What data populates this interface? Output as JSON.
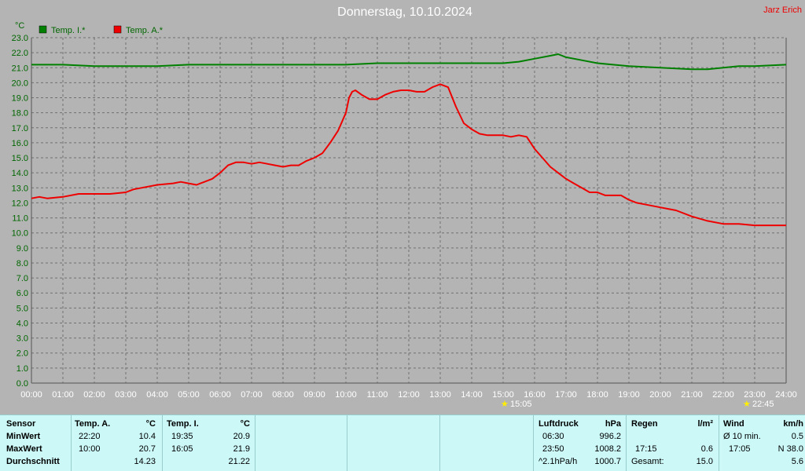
{
  "title": "Donnerstag, 10.10.2024",
  "author": "Jarz Erich",
  "unit": "°C",
  "markers": [
    "15:05",
    "22:45"
  ],
  "colors": {
    "inner": "#008000",
    "outer": "#ee0000",
    "axis": "#006600",
    "background": "#b4b4b4"
  },
  "chart_data": {
    "type": "line",
    "title": "Donnerstag, 10.10.2024",
    "ylabel": "°C",
    "ylim": [
      0,
      23
    ],
    "xlim": [
      0,
      24
    ],
    "grid": true,
    "legend": "top-left",
    "yticks": [
      "0.0",
      "1.0",
      "2.0",
      "3.0",
      "4.0",
      "5.0",
      "6.0",
      "7.0",
      "8.0",
      "9.0",
      "10.0",
      "11.0",
      "12.0",
      "13.0",
      "14.0",
      "15.0",
      "16.0",
      "17.0",
      "18.0",
      "19.0",
      "20.0",
      "21.0",
      "22.0",
      "23.0"
    ],
    "xticks": [
      "00:00",
      "01:00",
      "02:00",
      "03:00",
      "04:00",
      "05:00",
      "06:00",
      "07:00",
      "08:00",
      "09:00",
      "10:00",
      "11:00",
      "12:00",
      "13:00",
      "14:00",
      "15:00",
      "16:00",
      "17:00",
      "18:00",
      "19:00",
      "20:00",
      "21:00",
      "22:00",
      "23:00",
      "24:00"
    ],
    "series": [
      {
        "name": "Temp. I.*",
        "color": "#008000",
        "points": [
          [
            0,
            21.2
          ],
          [
            1,
            21.2
          ],
          [
            2,
            21.1
          ],
          [
            3,
            21.1
          ],
          [
            4,
            21.1
          ],
          [
            5,
            21.2
          ],
          [
            6,
            21.2
          ],
          [
            7,
            21.2
          ],
          [
            8,
            21.2
          ],
          [
            9,
            21.2
          ],
          [
            10,
            21.2
          ],
          [
            11,
            21.3
          ],
          [
            12,
            21.3
          ],
          [
            13,
            21.3
          ],
          [
            14,
            21.3
          ],
          [
            15,
            21.3
          ],
          [
            15.5,
            21.4
          ],
          [
            16,
            21.6
          ],
          [
            16.5,
            21.8
          ],
          [
            16.75,
            21.9
          ],
          [
            17,
            21.7
          ],
          [
            17.5,
            21.5
          ],
          [
            18,
            21.3
          ],
          [
            18.5,
            21.2
          ],
          [
            19,
            21.1
          ],
          [
            20,
            21.0
          ],
          [
            21,
            20.9
          ],
          [
            21.5,
            20.9
          ],
          [
            22,
            21.0
          ],
          [
            22.5,
            21.1
          ],
          [
            23,
            21.1
          ],
          [
            24,
            21.2
          ]
        ]
      },
      {
        "name": "Temp. A.*",
        "color": "#ee0000",
        "points": [
          [
            0,
            12.3
          ],
          [
            0.25,
            12.4
          ],
          [
            0.5,
            12.3
          ],
          [
            1,
            12.4
          ],
          [
            1.5,
            12.6
          ],
          [
            2,
            12.6
          ],
          [
            2.5,
            12.6
          ],
          [
            3,
            12.7
          ],
          [
            3.25,
            12.9
          ],
          [
            3.5,
            13.0
          ],
          [
            4,
            13.2
          ],
          [
            4.5,
            13.3
          ],
          [
            4.75,
            13.4
          ],
          [
            5,
            13.3
          ],
          [
            5.25,
            13.2
          ],
          [
            5.5,
            13.4
          ],
          [
            5.75,
            13.6
          ],
          [
            6,
            14.0
          ],
          [
            6.25,
            14.5
          ],
          [
            6.5,
            14.7
          ],
          [
            6.75,
            14.7
          ],
          [
            7,
            14.6
          ],
          [
            7.25,
            14.7
          ],
          [
            7.5,
            14.6
          ],
          [
            7.75,
            14.5
          ],
          [
            8,
            14.4
          ],
          [
            8.25,
            14.5
          ],
          [
            8.5,
            14.5
          ],
          [
            8.75,
            14.8
          ],
          [
            9,
            15.0
          ],
          [
            9.25,
            15.3
          ],
          [
            9.5,
            16.0
          ],
          [
            9.75,
            16.8
          ],
          [
            10,
            18.0
          ],
          [
            10.1,
            19.0
          ],
          [
            10.2,
            19.4
          ],
          [
            10.3,
            19.5
          ],
          [
            10.5,
            19.2
          ],
          [
            10.75,
            18.9
          ],
          [
            11,
            18.9
          ],
          [
            11.25,
            19.2
          ],
          [
            11.5,
            19.4
          ],
          [
            11.75,
            19.5
          ],
          [
            12,
            19.5
          ],
          [
            12.25,
            19.4
          ],
          [
            12.5,
            19.4
          ],
          [
            12.75,
            19.7
          ],
          [
            13,
            19.9
          ],
          [
            13.25,
            19.7
          ],
          [
            13.5,
            18.4
          ],
          [
            13.75,
            17.3
          ],
          [
            14,
            16.9
          ],
          [
            14.25,
            16.6
          ],
          [
            14.5,
            16.5
          ],
          [
            14.75,
            16.5
          ],
          [
            15,
            16.5
          ],
          [
            15.25,
            16.4
          ],
          [
            15.5,
            16.5
          ],
          [
            15.75,
            16.4
          ],
          [
            16,
            15.6
          ],
          [
            16.25,
            15.0
          ],
          [
            16.5,
            14.4
          ],
          [
            16.75,
            14.0
          ],
          [
            17,
            13.6
          ],
          [
            17.25,
            13.3
          ],
          [
            17.5,
            13.0
          ],
          [
            17.75,
            12.7
          ],
          [
            18,
            12.7
          ],
          [
            18.25,
            12.5
          ],
          [
            18.5,
            12.5
          ],
          [
            18.75,
            12.5
          ],
          [
            19,
            12.2
          ],
          [
            19.25,
            12.0
          ],
          [
            19.5,
            11.9
          ],
          [
            20,
            11.7
          ],
          [
            20.25,
            11.6
          ],
          [
            20.5,
            11.5
          ],
          [
            21,
            11.1
          ],
          [
            21.5,
            10.8
          ],
          [
            22,
            10.6
          ],
          [
            22.5,
            10.6
          ],
          [
            23,
            10.5
          ],
          [
            23.5,
            10.5
          ],
          [
            24,
            10.5
          ]
        ]
      }
    ]
  },
  "stats": {
    "sensor_header": "Sensor",
    "row_labels": [
      "MinWert",
      "MaxWert",
      "Durchschnitt"
    ],
    "temp_a": {
      "title": "Temp. A.",
      "unit": "°C",
      "min_time": "22:20",
      "min": "10.4",
      "max_time": "10:00",
      "max": "20.7",
      "avg": "14.23"
    },
    "temp_i": {
      "title": "Temp. I.",
      "unit": "°C",
      "min_time": "19:35",
      "min": "20.9",
      "max_time": "16:05",
      "max": "21.9",
      "avg": "21.22"
    },
    "pressure": {
      "title": "Luftdruck",
      "unit": "hPa",
      "min_time": "06:30",
      "min": "996.2",
      "max_time": "23:50",
      "max": "1008.2",
      "trend": "^2.1hPa/h",
      "current": "1000.7"
    },
    "rain": {
      "title": "Regen",
      "unit": "l/m²",
      "time": "17:15",
      "value": "0.6",
      "total_label": "Gesamt:",
      "total": "15.0"
    },
    "wind": {
      "title": "Wind",
      "unit": "km/h",
      "avg_label": "Ø 10 min.",
      "avg": "0.5",
      "gust_time": "17:05",
      "gust": "N 38.0",
      "current": "5.6"
    }
  }
}
